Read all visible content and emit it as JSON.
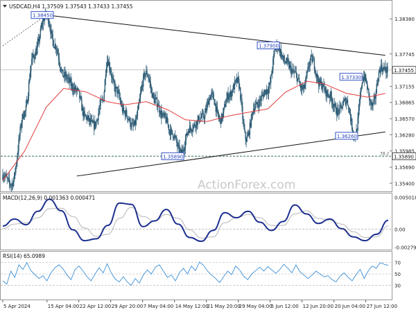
{
  "chart_data": [
    {
      "type": "candlestick",
      "title": "USDCAD,H4  1.37509 1.37543 1.37433 1.37455",
      "y_ticks": [
        1.3838,
        1.37745,
        1.37155,
        1.36865,
        1.3657,
        1.3628,
        1.35985,
        1.3569,
        1.354
      ],
      "ylim": [
        1.3524,
        1.3871
      ],
      "last_price": 1.37455,
      "x_tick_labels": [
        "5 Apr 2024",
        "15 Apr 04:00",
        "22 Apr 12:00",
        "29 Apr 20:00",
        "7 May 04:00",
        "14 May 12:00",
        "21 May 20:00",
        "29 May 04:00",
        "5 Jun 12:00",
        "12 Jun 20:00",
        "20 Jun 04:00",
        "27 Jun 12:00"
      ],
      "annotations": [
        {
          "label": "1.38450",
          "date": "16 Apr 2024",
          "value": 1.3845
        },
        {
          "label": "1.37900",
          "date": "7 Jun 2024",
          "value": 1.379
        },
        {
          "label": "1.37330",
          "date": "26 Jun 2024",
          "value": 1.3733
        },
        {
          "label": "1.36260",
          "date": "25 Jun 2024",
          "value": 1.3626
        },
        {
          "label": "1.35890",
          "date": "16 May 2024",
          "value": 1.3589
        }
      ],
      "level_marker": {
        "value": 1.3589,
        "label": "1.35890",
        "fib_label": "38.2"
      },
      "trendlines": {
        "upper": [
          {
            "date": "15 Apr 2024",
            "value": 1.3845
          },
          {
            "date": "2 Jul 2024",
            "value": 1.3772
          }
        ],
        "lower": [
          {
            "date": "22 Apr 2024",
            "value": 1.3553
          },
          {
            "date": "2 Jul 2024",
            "value": 1.3633
          }
        ]
      },
      "moving_average": [
        {
          "date": "5 Apr",
          "value": 1.3545
        },
        {
          "date": "10 Apr",
          "value": 1.3598
        },
        {
          "date": "15 Apr",
          "value": 1.3678
        },
        {
          "date": "19 Apr",
          "value": 1.3712
        },
        {
          "date": "24 Apr",
          "value": 1.3706
        },
        {
          "date": "29 Apr",
          "value": 1.3688
        },
        {
          "date": "3 May",
          "value": 1.3682
        },
        {
          "date": "8 May",
          "value": 1.3688
        },
        {
          "date": "13 May",
          "value": 1.3673
        },
        {
          "date": "17 May",
          "value": 1.3655
        },
        {
          "date": "22 May",
          "value": 1.3652
        },
        {
          "date": "27 May",
          "value": 1.3662
        },
        {
          "date": "31 May",
          "value": 1.3668
        },
        {
          "date": "5 Jun",
          "value": 1.3675
        },
        {
          "date": "9 Jun",
          "value": 1.3705
        },
        {
          "date": "14 Jun",
          "value": 1.3725
        },
        {
          "date": "18 Jun",
          "value": 1.372
        },
        {
          "date": "23 Jun",
          "value": 1.3703
        },
        {
          "date": "28 Jun",
          "value": 1.3696
        },
        {
          "date": "2 Jul",
          "value": 1.3703
        }
      ],
      "swing_points": [
        {
          "date": "5 Apr",
          "value": 1.3555
        },
        {
          "date": "7 Apr",
          "value": 1.3538
        },
        {
          "date": "10 Apr",
          "value": 1.3668
        },
        {
          "date": "12 Apr",
          "value": 1.377
        },
        {
          "date": "15 Apr",
          "value": 1.3845
        },
        {
          "date": "17 Apr",
          "value": 1.379
        },
        {
          "date": "19 Apr",
          "value": 1.3735
        },
        {
          "date": "22 Apr",
          "value": 1.3708
        },
        {
          "date": "24 Apr",
          "value": 1.366
        },
        {
          "date": "26 Apr",
          "value": 1.3645
        },
        {
          "date": "28 Apr",
          "value": 1.369
        },
        {
          "date": "29 Apr",
          "value": 1.3762
        },
        {
          "date": "1 May",
          "value": 1.371
        },
        {
          "date": "3 May",
          "value": 1.3668
        },
        {
          "date": "5 May",
          "value": 1.3643
        },
        {
          "date": "8 May",
          "value": 1.374
        },
        {
          "date": "10 May",
          "value": 1.369
        },
        {
          "date": "12 May",
          "value": 1.366
        },
        {
          "date": "14 May",
          "value": 1.363
        },
        {
          "date": "16 May",
          "value": 1.3595
        },
        {
          "date": "18 May",
          "value": 1.364
        },
        {
          "date": "21 May",
          "value": 1.366
        },
        {
          "date": "23 May",
          "value": 1.37
        },
        {
          "date": "25 May",
          "value": 1.3655
        },
        {
          "date": "27 May",
          "value": 1.37
        },
        {
          "date": "29 May",
          "value": 1.3725
        },
        {
          "date": "31 May",
          "value": 1.362
        },
        {
          "date": "2 Jun",
          "value": 1.368
        },
        {
          "date": "5 Jun",
          "value": 1.371
        },
        {
          "date": "7 Jun",
          "value": 1.379
        },
        {
          "date": "9 Jun",
          "value": 1.376
        },
        {
          "date": "11 Jun",
          "value": 1.374
        },
        {
          "date": "13 Jun",
          "value": 1.371
        },
        {
          "date": "15 Jun",
          "value": 1.3765
        },
        {
          "date": "17 Jun",
          "value": 1.372
        },
        {
          "date": "19 Jun",
          "value": 1.37
        },
        {
          "date": "21 Jun",
          "value": 1.367
        },
        {
          "date": "23 Jun",
          "value": 1.369
        },
        {
          "date": "25 Jun",
          "value": 1.3626
        },
        {
          "date": "27 Jun",
          "value": 1.3733
        },
        {
          "date": "29 Jun",
          "value": 1.368
        },
        {
          "date": "1 Jul",
          "value": 1.375
        },
        {
          "date": "2 Jul",
          "value": 1.37455
        }
      ]
    },
    {
      "type": "line",
      "title": "MACD(12,26,9) 0.001363 0.000471",
      "y_ticks": [
        0.005018,
        0.0,
        -0.002795
      ],
      "y_tick_labels": [
        "0.005018",
        "0.00",
        "-0.002795"
      ],
      "ylim": [
        -0.0032,
        0.0055
      ],
      "series": [
        {
          "name": "",
          "values": [
            0.0005,
            0.0016,
            0.0007,
            0.0028,
            0.0047,
            0.0029,
            -0.0001,
            -0.0018,
            -0.0015,
            0.0006,
            0.0041,
            0.0039,
            0.0004,
            0.0013,
            0.0031,
            0.0008,
            -0.0013,
            -0.0019,
            -0.0002,
            0.0026,
            0.0018,
            0.0028,
            0.0011,
            -0.0002,
            0.0012,
            0.0038,
            0.0024,
            0.0009,
            0.0016,
            0.0001,
            -0.0012,
            -0.0018,
            -0.0008,
            0.0014
          ]
        },
        {
          "name": "",
          "values": [
            0.0001,
            0.0008,
            0.001,
            0.0018,
            0.0032,
            0.0033,
            0.002,
            0.0002,
            -0.0011,
            -0.0008,
            0.0017,
            0.0034,
            0.002,
            0.0013,
            0.0023,
            0.0017,
            -0.0001,
            -0.0014,
            -0.0012,
            0.001,
            0.0018,
            0.0023,
            0.0018,
            0.0006,
            0.0006,
            0.0024,
            0.0029,
            0.0017,
            0.0014,
            0.0008,
            -0.0004,
            -0.0013,
            -0.0012,
            0.0005
          ]
        }
      ]
    },
    {
      "type": "line",
      "title": "RSI(14) 65.0989",
      "y_ticks": [
        70,
        50,
        30
      ],
      "ylim": [
        5,
        88
      ],
      "series": [
        {
          "name": "",
          "values": [
            38,
            32,
            55,
            44,
            66,
            58,
            70,
            56,
            49,
            42,
            47,
            38,
            52,
            61,
            66,
            59,
            48,
            40,
            58,
            64,
            55,
            45,
            38,
            50,
            61,
            52,
            68,
            52,
            41,
            36,
            45,
            36,
            30,
            42,
            34,
            48,
            57,
            50,
            62,
            66,
            55,
            44,
            48,
            38,
            52,
            60,
            50,
            64,
            56,
            71,
            65,
            55,
            48,
            42,
            35,
            45,
            55,
            49,
            64,
            57,
            46,
            40,
            50,
            56,
            62,
            55,
            63,
            57,
            51,
            58,
            67,
            60,
            52,
            66,
            54,
            48,
            42,
            48,
            55,
            50,
            45,
            47,
            40,
            36,
            46,
            52,
            44,
            38,
            49,
            58,
            42,
            55,
            64,
            60,
            70,
            67,
            65
          ]
        }
      ]
    }
  ]
}
